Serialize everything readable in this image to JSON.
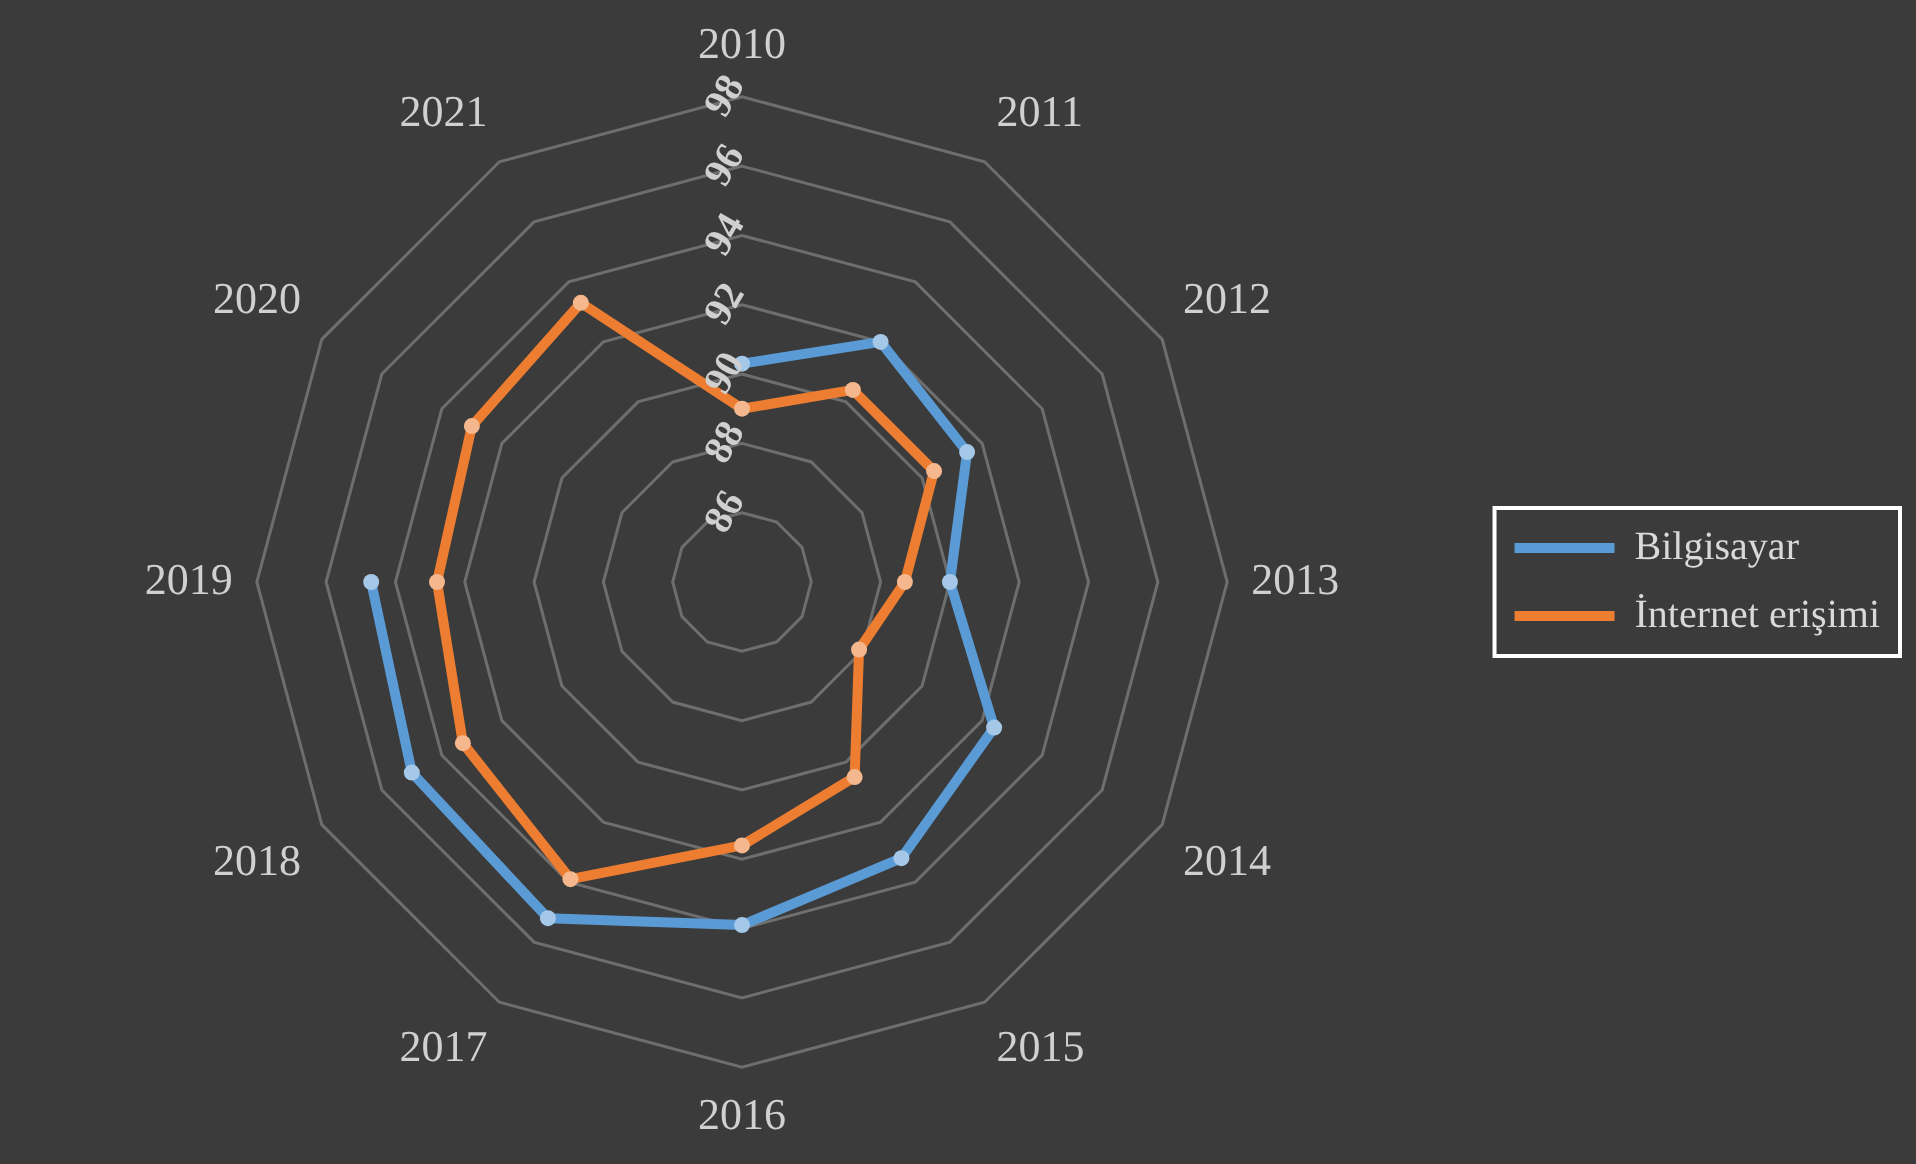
{
  "chart_data": {
    "type": "radar",
    "categories": [
      "2010",
      "2011",
      "2012",
      "2013",
      "2014",
      "2015",
      "2016",
      "2017",
      "2018",
      "2019",
      "2020",
      "2021"
    ],
    "series": [
      {
        "name": "Bilgisayar",
        "color": "#5b9bd5",
        "values": [
          90.3,
          92.0,
          91.5,
          90.0,
          92.4,
          93.2,
          93.9,
          95.2,
          95.0,
          94.7,
          null,
          null
        ]
      },
      {
        "name": "İnternet erişimi",
        "color": "#ed7d31",
        "values": [
          89.0,
          90.4,
          90.4,
          88.7,
          87.9,
          90.5,
          91.6,
          93.9,
          93.3,
          92.8,
          93.0,
          93.3
        ]
      }
    ],
    "ylim": [
      84,
      98
    ],
    "yticks": [
      86,
      88,
      90,
      92,
      94,
      96,
      98
    ],
    "grid": true,
    "legend": "right",
    "marker": "circle"
  }
}
